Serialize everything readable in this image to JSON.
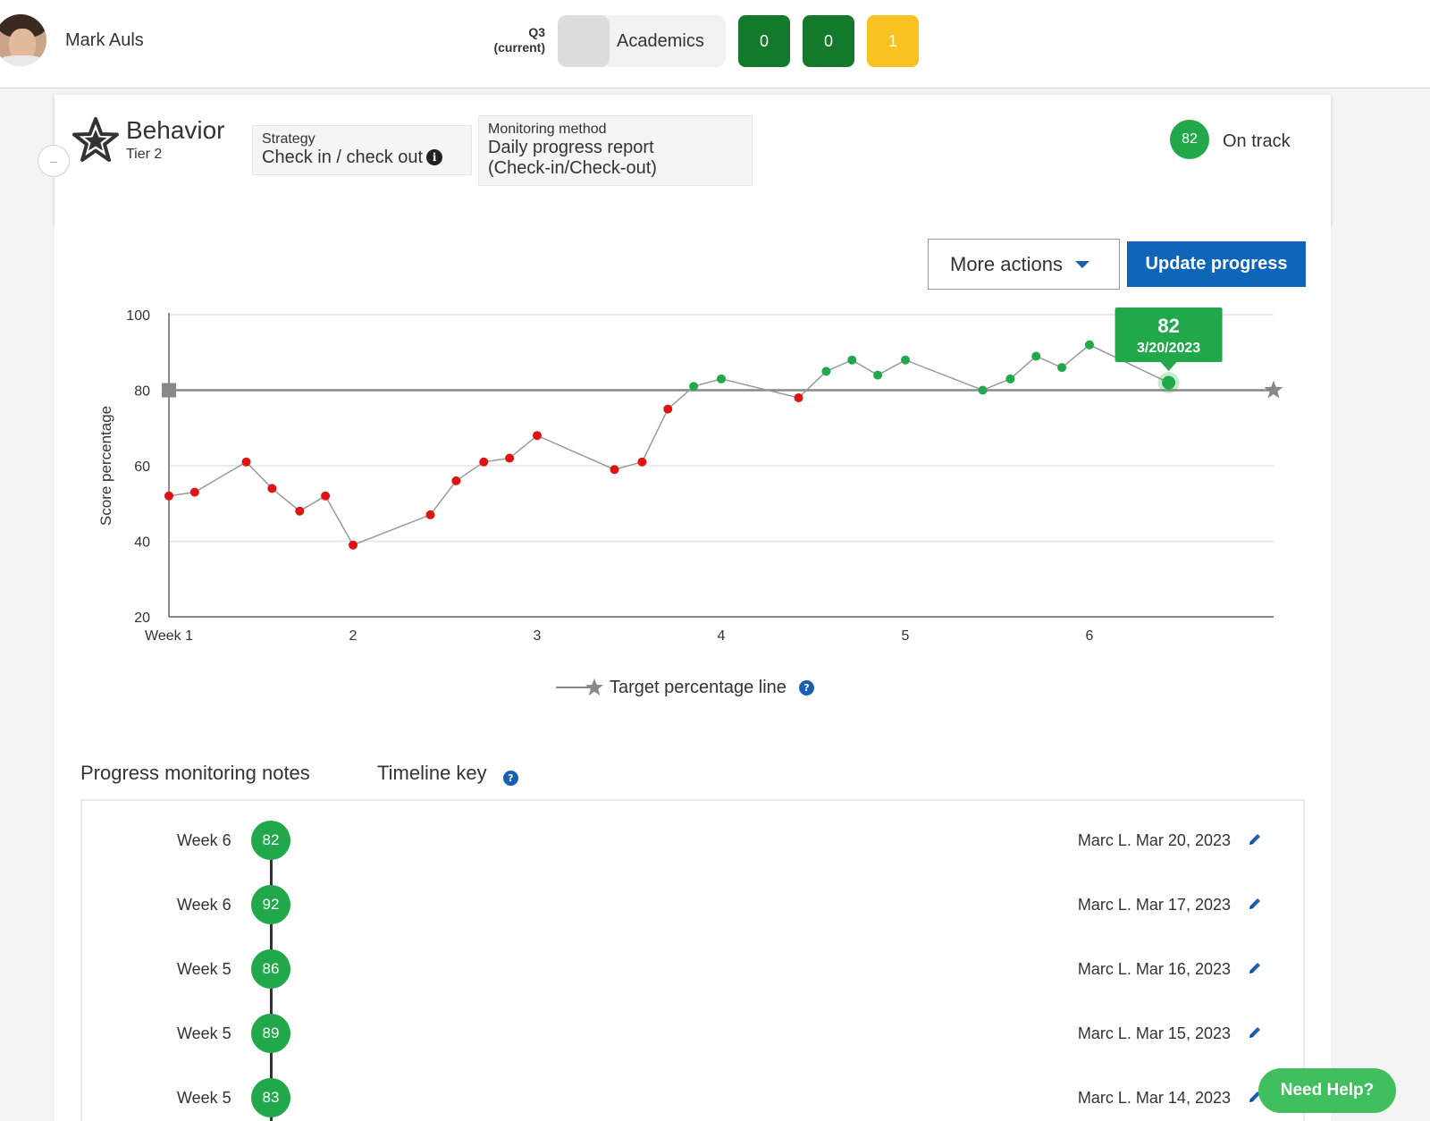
{
  "header": {
    "student_name": "Mark Auls",
    "term_line1": "Q3",
    "term_line2": "(current)",
    "category_label": "Academics",
    "chips": [
      {
        "value": "0",
        "color": "#137a2c"
      },
      {
        "value": "0",
        "color": "#137a2c"
      },
      {
        "value": "1",
        "color": "#f8c320"
      }
    ]
  },
  "card": {
    "collapse_label": "–",
    "title": "Behavior",
    "tier": "Tier 2",
    "strategy_label": "Strategy",
    "strategy_value": "Check in / check out",
    "strategy_info": "i",
    "monitoring_label": "Monitoring method",
    "monitoring_line1": "Daily progress report",
    "monitoring_line2": "(Check-in/Check-out)",
    "status_score": "82",
    "status_text": "On track",
    "status_color": "#20a84a"
  },
  "actions": {
    "more_actions": "More actions",
    "update_progress": "Update progress"
  },
  "chart_data": {
    "type": "line",
    "ylabel": "Score percentage",
    "ylim": [
      20,
      100
    ],
    "yticks": [
      20,
      40,
      60,
      80,
      100
    ],
    "xlim": [
      1,
      7
    ],
    "xticks": [
      1,
      2,
      3,
      4,
      5,
      6
    ],
    "xtick_labels": [
      "Week 1",
      "2",
      "3",
      "4",
      "5",
      "6"
    ],
    "target": 80,
    "colors": {
      "below": "#e01313",
      "above": "#20a84a",
      "line": "#999999",
      "target": "#888888"
    },
    "series": [
      {
        "x": [
          1.0,
          1.14,
          1.42,
          1.56,
          1.71,
          1.85,
          2.0,
          2.42,
          2.56,
          2.71,
          2.85,
          3.0,
          3.42,
          3.57,
          3.71,
          3.85,
          4.0,
          4.42,
          4.57,
          4.71,
          4.85,
          5.0,
          5.42,
          5.57,
          5.71,
          5.85,
          6.0,
          6.43
        ],
        "values": [
          52,
          53,
          61,
          54,
          48,
          52,
          39,
          47,
          56,
          61,
          62,
          68,
          59,
          61,
          75,
          81,
          83,
          78,
          85,
          88,
          84,
          88,
          80,
          83,
          89,
          86,
          92,
          82
        ]
      }
    ],
    "highlight": {
      "value": "82",
      "date": "3/20/2023",
      "index": 27
    },
    "legend": "Target percentage line",
    "legend_help": "?"
  },
  "notes": {
    "heading": "Progress monitoring notes",
    "timeline_key": "Timeline key",
    "timeline_help": "?",
    "items": [
      {
        "week": "Week 6",
        "score": "82",
        "meta": "Marc L. Mar 20, 2023"
      },
      {
        "week": "Week 6",
        "score": "92",
        "meta": "Marc L. Mar 17, 2023"
      },
      {
        "week": "Week 5",
        "score": "86",
        "meta": "Marc L. Mar 16, 2023"
      },
      {
        "week": "Week 5",
        "score": "89",
        "meta": "Marc L. Mar 15, 2023"
      },
      {
        "week": "Week 5",
        "score": "83",
        "meta": "Marc L. Mar 14, 2023"
      }
    ]
  },
  "help_button": "Need Help?"
}
